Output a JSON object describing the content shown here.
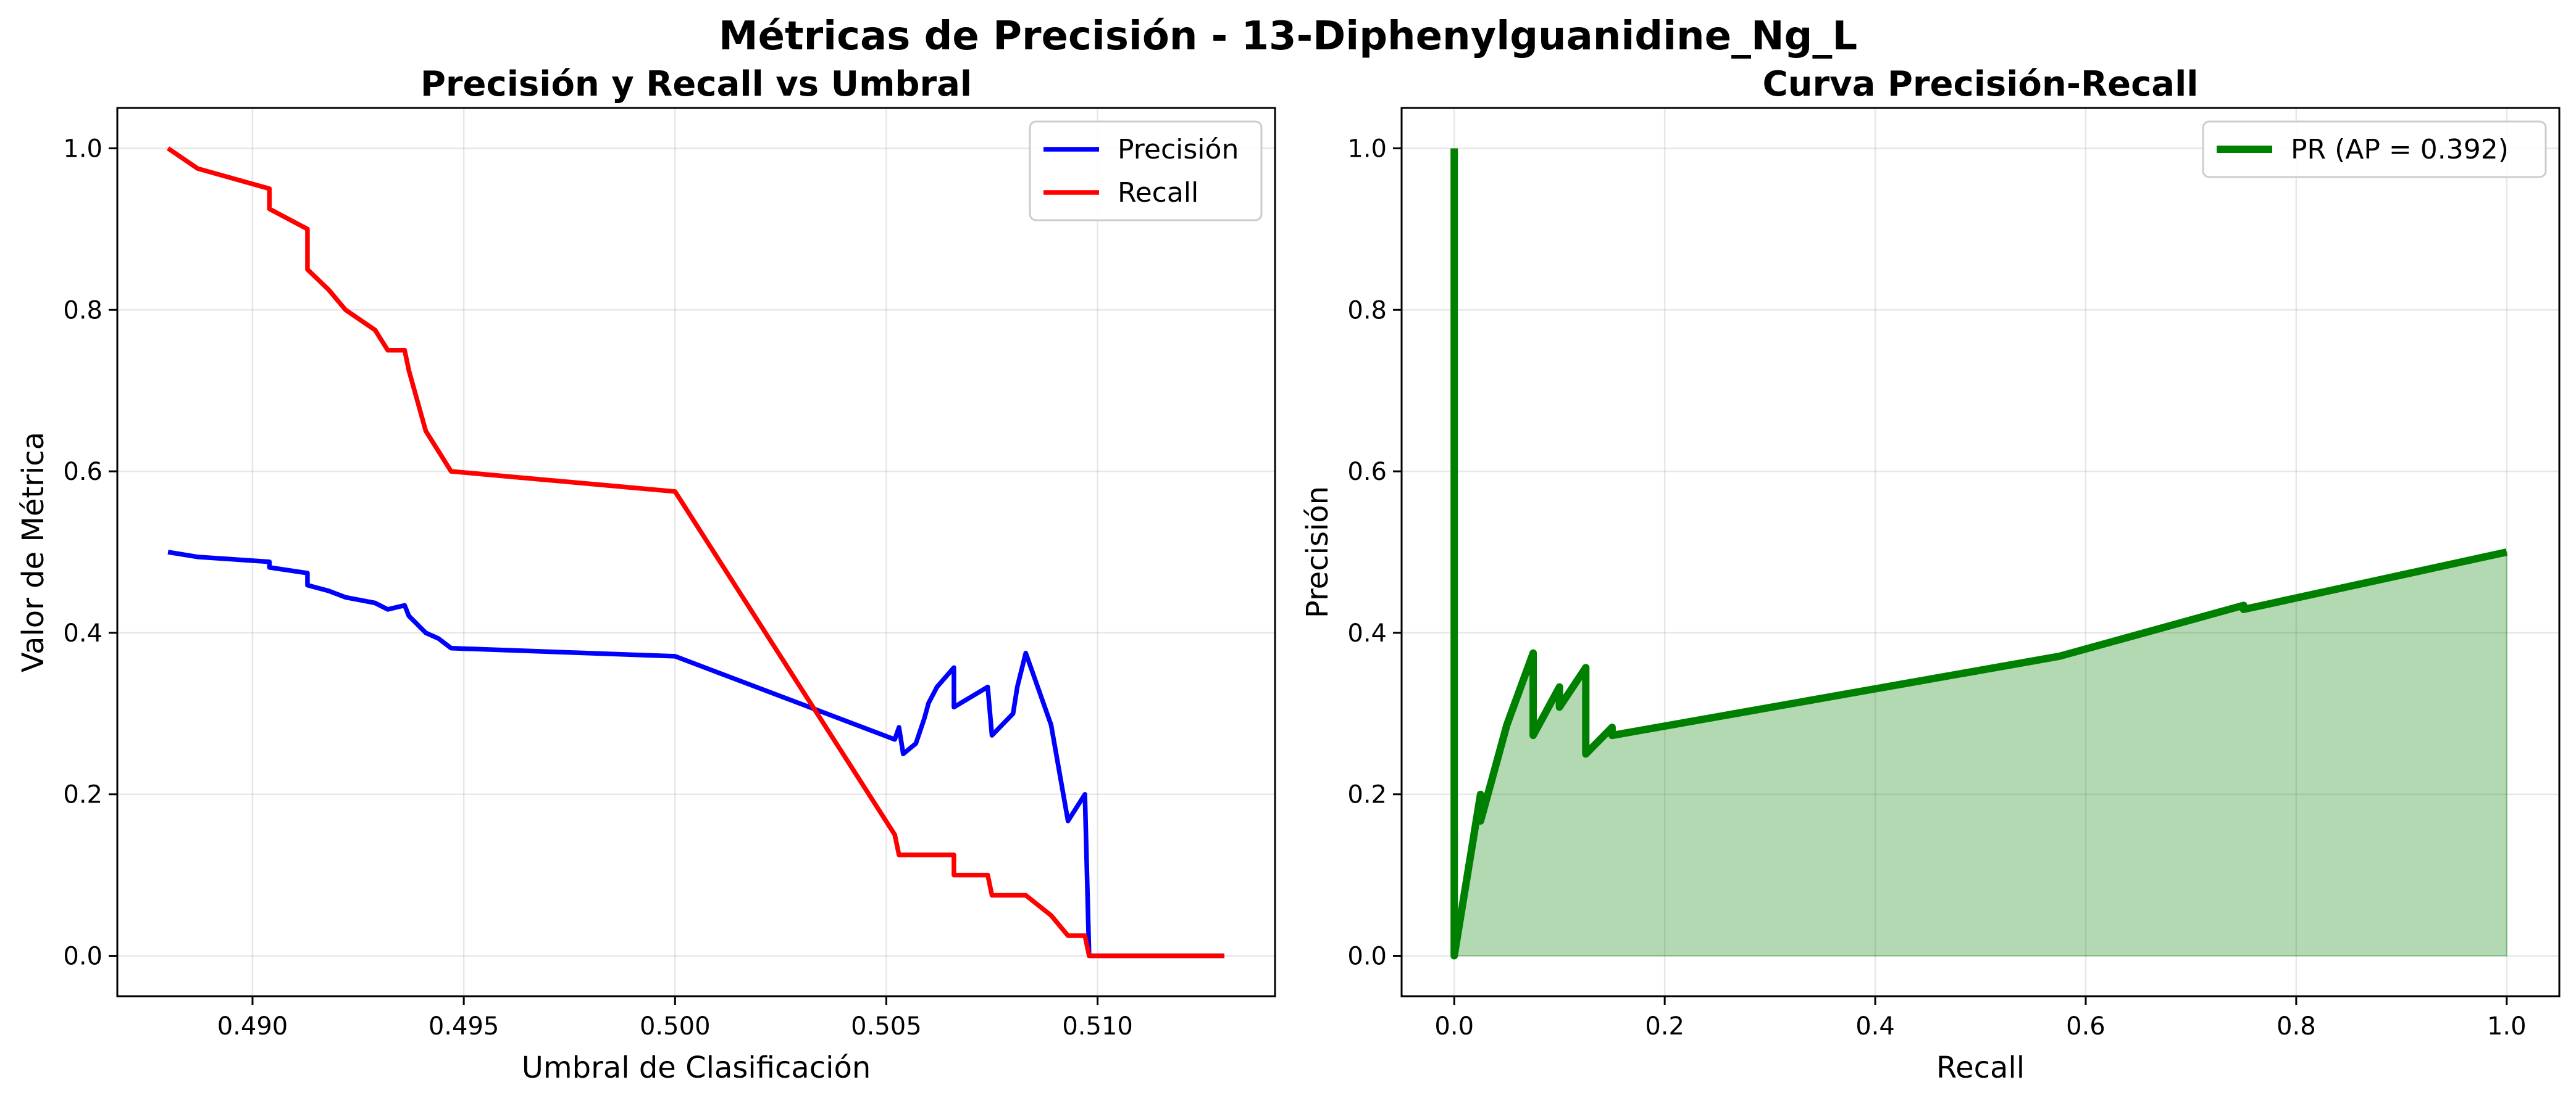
{
  "figure": {
    "title": "Métricas de Precisión - 13-Diphenylguanidine_Ng_L"
  },
  "chart_data": [
    {
      "type": "line",
      "title": "Precisión y Recall vs Umbral",
      "xlabel": "Umbral de Clasificación",
      "ylabel": "Valor de Métrica",
      "xlim": [
        0.4868,
        0.5142
      ],
      "ylim": [
        -0.05,
        1.05
      ],
      "xticks": [
        0.49,
        0.495,
        0.5,
        0.505,
        0.51
      ],
      "xtick_labels": [
        "0.490",
        "0.495",
        "0.500",
        "0.505",
        "0.510"
      ],
      "yticks": [
        0.0,
        0.2,
        0.4,
        0.6,
        0.8,
        1.0
      ],
      "ytick_labels": [
        "0.0",
        "0.2",
        "0.4",
        "0.6",
        "0.8",
        "1.0"
      ],
      "grid": true,
      "legend_position": "top-right",
      "series": [
        {
          "name": "Precisión",
          "color": "#0000ff",
          "x": [
            0.488,
            0.4887,
            0.4904,
            0.4904,
            0.4913,
            0.4913,
            0.4918,
            0.4922,
            0.4929,
            0.4932,
            0.4936,
            0.4937,
            0.4941,
            0.4944,
            0.4947,
            0.5,
            0.5052,
            0.5053,
            0.5054,
            0.5057,
            0.5059,
            0.506,
            0.5062,
            0.5066,
            0.5066,
            0.5074,
            0.5075,
            0.508,
            0.5081,
            0.5083,
            0.5089,
            0.5093,
            0.5097,
            0.5098,
            0.513
          ],
          "y": [
            0.5,
            0.494,
            0.488,
            0.481,
            0.474,
            0.459,
            0.452,
            0.444,
            0.437,
            0.429,
            0.434,
            0.421,
            0.4,
            0.393,
            0.381,
            0.371,
            0.268,
            0.283,
            0.25,
            0.263,
            0.294,
            0.313,
            0.333,
            0.357,
            0.308,
            0.333,
            0.273,
            0.3,
            0.333,
            0.375,
            0.286,
            0.167,
            0.2,
            0.0,
            0.0
          ]
        },
        {
          "name": "Recall",
          "color": "#ff0000",
          "x": [
            0.488,
            0.4887,
            0.4904,
            0.4904,
            0.4913,
            0.4913,
            0.4918,
            0.4922,
            0.4929,
            0.4932,
            0.4936,
            0.4937,
            0.4941,
            0.4944,
            0.4947,
            0.5,
            0.5052,
            0.5053,
            0.5066,
            0.5066,
            0.5074,
            0.5075,
            0.5083,
            0.5089,
            0.5093,
            0.5097,
            0.5098,
            0.513
          ],
          "y": [
            1.0,
            0.975,
            0.95,
            0.925,
            0.9,
            0.85,
            0.825,
            0.8,
            0.775,
            0.75,
            0.75,
            0.725,
            0.65,
            0.625,
            0.6,
            0.575,
            0.15,
            0.125,
            0.125,
            0.1,
            0.1,
            0.075,
            0.075,
            0.05,
            0.025,
            0.025,
            0.0,
            0.0
          ]
        }
      ]
    },
    {
      "type": "area",
      "title": "Curva Precisión-Recall",
      "xlabel": "Recall",
      "ylabel": "Precisión",
      "xlim": [
        -0.05,
        1.05
      ],
      "ylim": [
        -0.05,
        1.05
      ],
      "xticks": [
        0.0,
        0.2,
        0.4,
        0.6,
        0.8,
        1.0
      ],
      "xtick_labels": [
        "0.0",
        "0.2",
        "0.4",
        "0.6",
        "0.8",
        "1.0"
      ],
      "yticks": [
        0.0,
        0.2,
        0.4,
        0.6,
        0.8,
        1.0
      ],
      "ytick_labels": [
        "0.0",
        "0.2",
        "0.4",
        "0.6",
        "0.8",
        "1.0"
      ],
      "grid": true,
      "legend_position": "top-right",
      "fill_color": "#008000",
      "fill_opacity": 0.3,
      "series": [
        {
          "name": "PR (AP = 0.392)",
          "color": "#008000",
          "x": [
            0.0,
            0.0,
            0.0,
            0.025,
            0.025,
            0.05,
            0.075,
            0.075,
            0.1,
            0.1,
            0.125,
            0.125,
            0.15,
            0.15,
            0.575,
            0.75,
            0.75,
            1.0
          ],
          "y": [
            1.0,
            0.0,
            0.0,
            0.2,
            0.167,
            0.286,
            0.375,
            0.273,
            0.333,
            0.308,
            0.357,
            0.25,
            0.283,
            0.273,
            0.371,
            0.434,
            0.429,
            0.5
          ]
        }
      ]
    }
  ]
}
